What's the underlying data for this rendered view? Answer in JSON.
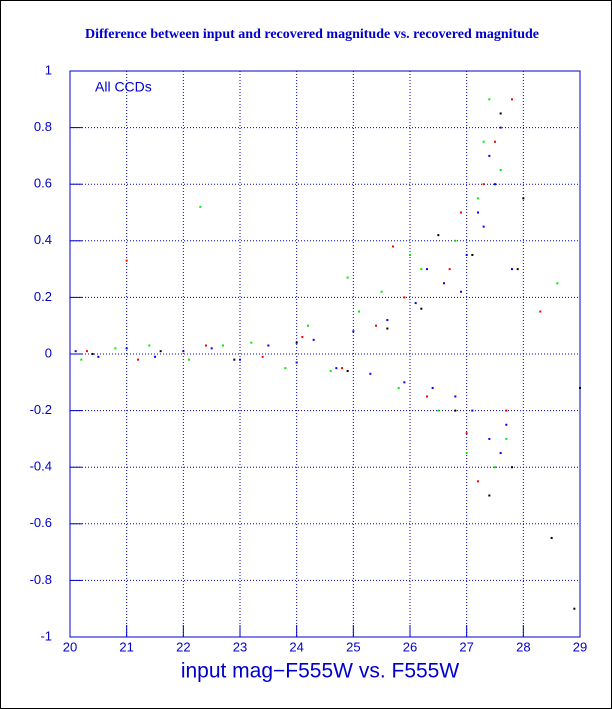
{
  "chart_data": {
    "type": "scatter",
    "title": "Difference between input and recovered magnitude vs. recovered magnitude",
    "x_label": "input mag−F555W vs. F555W",
    "annotation": "All CCDs",
    "xlim": [
      20,
      29
    ],
    "xticks": [
      20,
      21,
      22,
      23,
      24,
      25,
      26,
      27,
      28,
      29
    ],
    "ylim": [
      -1,
      1
    ],
    "yticks": [
      -1,
      -0.8,
      -0.6,
      -0.4,
      -0.2,
      0,
      0.2,
      0.4,
      0.6,
      0.8,
      1
    ],
    "grid": true,
    "axis_color": "#0000cc",
    "series": [
      {
        "color": "#000000",
        "x": [
          20.4,
          21.6,
          22.9,
          24.0,
          24.9,
          25.6,
          26.2,
          26.8,
          27.1,
          27.4,
          27.6,
          27.8,
          28.0,
          28.5,
          28.9,
          27.9,
          26.5,
          29.0
        ],
        "values": [
          0.0,
          0.01,
          -0.02,
          0.04,
          -0.06,
          0.09,
          0.16,
          -0.2,
          0.35,
          -0.5,
          0.85,
          -0.4,
          0.55,
          -0.65,
          -0.9,
          0.3,
          0.42,
          -0.12
        ]
      },
      {
        "color": "#ff0000",
        "x": [
          20.3,
          21.2,
          22.4,
          23.4,
          24.1,
          24.8,
          25.4,
          25.9,
          26.3,
          26.7,
          27.0,
          27.3,
          27.5,
          27.7,
          27.8,
          21.0,
          25.7,
          28.3,
          27.2,
          26.9
        ],
        "values": [
          0.01,
          -0.02,
          0.03,
          -0.01,
          0.06,
          -0.05,
          0.1,
          0.2,
          -0.15,
          0.3,
          -0.28,
          0.6,
          0.75,
          -0.2,
          0.9,
          0.33,
          0.38,
          0.15,
          -0.45,
          0.5
        ]
      },
      {
        "color": "#00ee00",
        "x": [
          20.2,
          20.8,
          21.4,
          22.1,
          22.7,
          23.2,
          23.8,
          24.2,
          24.6,
          25.1,
          25.5,
          25.8,
          26.2,
          26.5,
          26.8,
          27.0,
          27.2,
          27.4,
          27.5,
          27.6,
          27.7,
          26.0,
          22.3,
          28.6,
          24.9,
          27.3
        ],
        "values": [
          -0.02,
          0.02,
          0.03,
          -0.02,
          0.03,
          0.04,
          -0.05,
          0.1,
          -0.06,
          0.15,
          0.22,
          -0.12,
          0.3,
          -0.2,
          0.4,
          -0.35,
          0.55,
          0.9,
          -0.4,
          0.65,
          -0.3,
          0.35,
          0.52,
          0.25,
          0.27,
          0.75
        ]
      },
      {
        "color": "#0000ff",
        "x": [
          20.1,
          20.5,
          21,
          21.5,
          22,
          22.5,
          23,
          23.5,
          24,
          24.3,
          24.7,
          25,
          25.3,
          25.6,
          25.9,
          26.1,
          26.4,
          26.6,
          26.8,
          27,
          27.1,
          27.3,
          27.4,
          27.5,
          27.6,
          27.7,
          27.8,
          27.6,
          27.4,
          27.2,
          26.9,
          26.3
        ],
        "values": [
          0.01,
          -0.01,
          0.02,
          -0.01,
          0.01,
          0.02,
          -0.02,
          0.03,
          -0.03,
          0.05,
          -0.05,
          0.08,
          -0.07,
          0.12,
          -0.1,
          0.18,
          -0.12,
          0.25,
          -0.15,
          0.35,
          -0.2,
          0.45,
          -0.3,
          0.6,
          0.8,
          -0.25,
          0.3,
          -0.35,
          0.7,
          0.5,
          0.22,
          0.3
        ]
      }
    ]
  }
}
